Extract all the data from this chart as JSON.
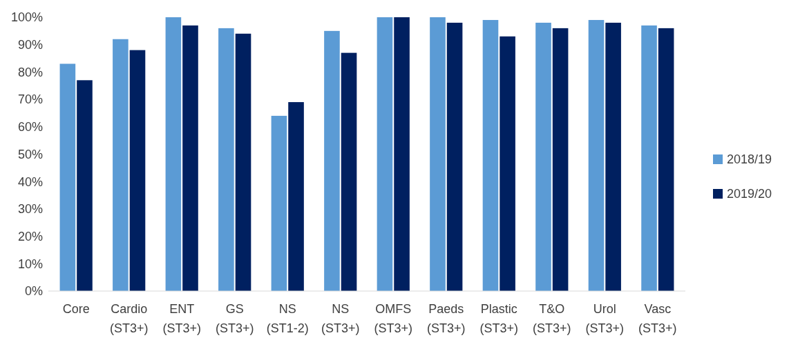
{
  "chart_data": {
    "type": "bar",
    "categories": [
      "Core",
      "Cardio (ST3+)",
      "ENT (ST3+)",
      "GS (ST3+)",
      "NS (ST1-2)",
      "NS (ST3+)",
      "OMFS (ST3+)",
      "Paeds (ST3+)",
      "Plastic (ST3+)",
      "T&O (ST3+)",
      "Urol (ST3+)",
      "Vasc (ST3+)"
    ],
    "series": [
      {
        "name": "2018/19",
        "color": "#5b9bd5",
        "values": [
          83,
          92,
          100,
          96,
          64,
          95,
          100,
          100,
          99,
          98,
          99,
          97
        ]
      },
      {
        "name": "2019/20",
        "color": "#002060",
        "values": [
          77,
          88,
          97,
          94,
          69,
          87,
          100,
          98,
          93,
          96,
          98,
          96
        ]
      }
    ],
    "ylim": [
      0,
      100
    ],
    "yticks": [
      {
        "value": 0,
        "label": "0%"
      },
      {
        "value": 10,
        "label": "10%"
      },
      {
        "value": 20,
        "label": "20%"
      },
      {
        "value": 30,
        "label": "30%"
      },
      {
        "value": 40,
        "label": "40%"
      },
      {
        "value": 50,
        "label": "50%"
      },
      {
        "value": 60,
        "label": "60%"
      },
      {
        "value": 70,
        "label": "70%"
      },
      {
        "value": 80,
        "label": "80%"
      },
      {
        "value": 90,
        "label": "90%"
      },
      {
        "value": 100,
        "label": "100%"
      }
    ],
    "grid": false,
    "legend": "right"
  }
}
